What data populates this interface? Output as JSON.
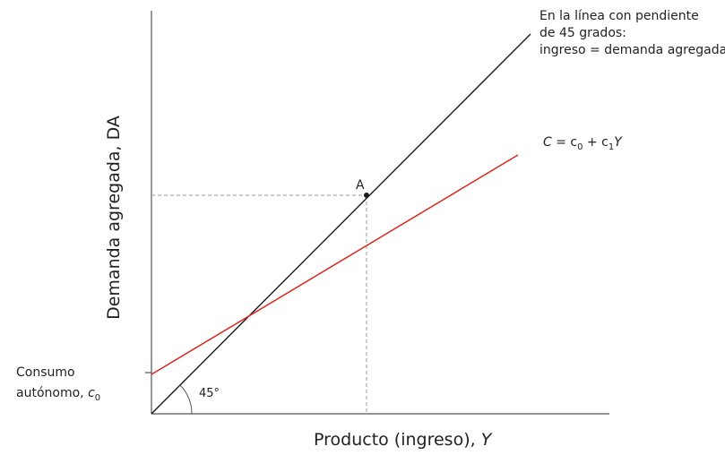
{
  "axes": {
    "x_title": "Producto (ingreso), ",
    "x_title_var": "Y",
    "y_title": "Demanda agregada, DA",
    "origin_angle_label": "45°"
  },
  "point": {
    "label": "A"
  },
  "forty_five_note": {
    "line1": "En la línea con pendiente",
    "line2": "de 45 grados:",
    "line3": "ingreso = demanda agregada"
  },
  "consumption": {
    "equation_C": "C",
    "equation_eq": " = c",
    "equation_sub0": "0",
    "equation_plus": " + c",
    "equation_sub1": "1",
    "equation_Y": "Y"
  },
  "intercept_label": {
    "line1": "Consumo",
    "line2": "autónomo, ",
    "var": "c",
    "sub": "0"
  },
  "colors": {
    "forty_five_line": "#1a1a1a",
    "consumption_line": "#d9281c",
    "dashed": "#9a9a9a",
    "axis": "#555555"
  }
}
